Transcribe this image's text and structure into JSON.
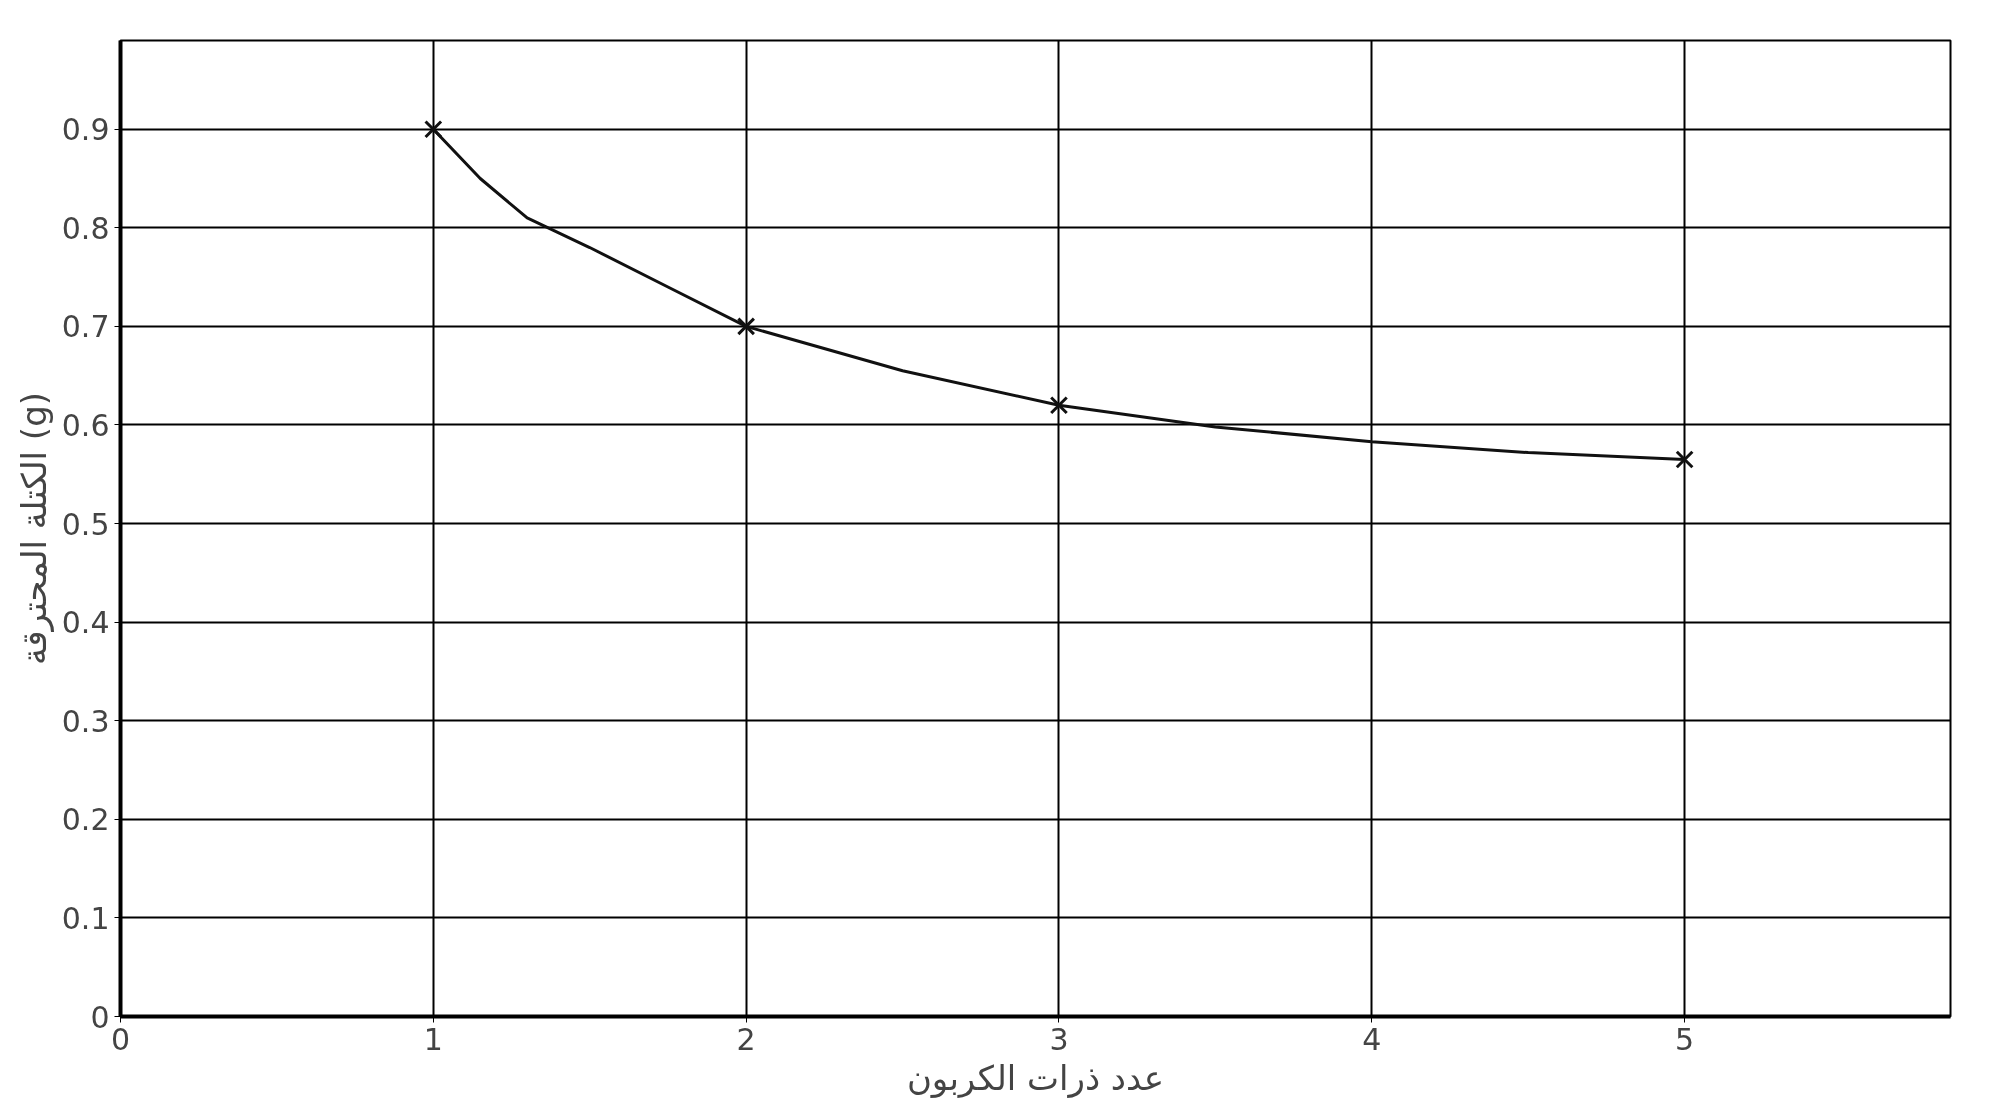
{
  "chart_data": {
    "type": "line",
    "xlabel": "عدد ذرات الكربون",
    "ylabel": "الكتلة المحترقة (g)",
    "xlim": [
      0,
      5.85
    ],
    "ylim": [
      0,
      0.99
    ],
    "xticks": [
      0,
      1,
      2,
      3,
      4,
      5
    ],
    "yticks": [
      0,
      0.1,
      0.2,
      0.3,
      0.4,
      0.5,
      0.6,
      0.7,
      0.8,
      0.9
    ],
    "grid": true,
    "series": [
      {
        "color": "#111111",
        "marker": "none",
        "x": [
          1,
          1.15,
          1.3,
          1.5,
          1.75,
          2,
          2.5,
          3,
          3.5,
          4,
          4.5,
          5
        ],
        "values": [
          0.9,
          0.85,
          0.81,
          0.78,
          0.74,
          0.7,
          0.655,
          0.62,
          0.598,
          0.583,
          0.572,
          0.565
        ]
      },
      {
        "type": "scatter",
        "color": "#111111",
        "marker": "cross",
        "x": [
          1,
          2,
          3,
          5
        ],
        "values": [
          0.9,
          0.7,
          0.62,
          0.565
        ]
      }
    ]
  }
}
